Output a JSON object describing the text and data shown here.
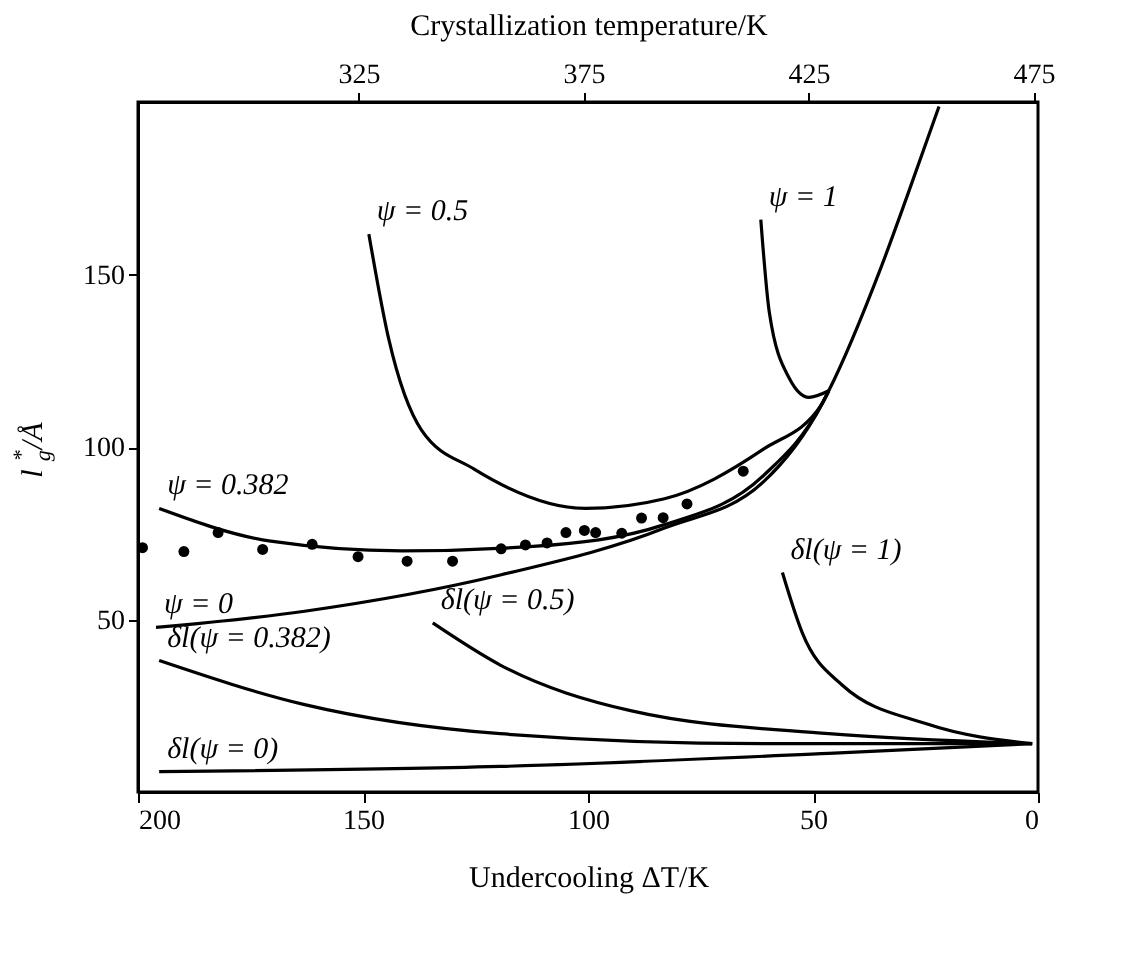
{
  "chart_data": {
    "type": "line",
    "xlabel": "Undercooling ΔT/K",
    "x2label": "Crystallization temperature/K",
    "ylabel": "l$_{g}$$^{*}$/Å",
    "xlim": [
      200,
      0
    ],
    "xticks": [
      200,
      150,
      100,
      50,
      0
    ],
    "x2lim": [
      276,
      476
    ],
    "x2ticks": [
      325,
      375,
      425,
      475
    ],
    "ylim": [
      0,
      200
    ],
    "yticks": [
      50,
      100,
      150
    ],
    "grid": false,
    "line_style": "solid",
    "marker": "none",
    "series": [
      {
        "name": "ψ = 0",
        "color": "#000000",
        "x": [
          196,
          163,
          119.5,
          83,
          61.1,
          48,
          46.5,
          34.9,
          29,
          22
        ],
        "values": [
          47.7,
          52.4,
          62.9,
          76.5,
          89.8,
          112.5,
          116.3,
          152,
          173,
          198.7
        ]
      },
      {
        "name": "ψ = 0.382",
        "color": "#000000",
        "x": [
          195.3,
          170.5,
          141.4,
          112.2,
          83,
          61.1,
          48,
          46.5
        ],
        "values": [
          82.2,
          72.7,
          69.9,
          71.2,
          77.5,
          91.6,
          112.5,
          116.3
        ]
      },
      {
        "name": "ψ = 0.5",
        "color": "#000000",
        "x": [
          148.7,
          144.3,
          137,
          125.3,
          100.5,
          83,
          61.1,
          48,
          46.5
        ],
        "values": [
          161.7,
          131.4,
          104.9,
          93.6,
          82.2,
          85,
          99.3,
          112.5,
          116.3
        ]
      },
      {
        "name": "ψ = 1",
        "color": "#000000",
        "x": [
          61.6,
          59.7,
          55.3,
          50.9,
          46.5
        ],
        "values": [
          165.9,
          139,
          120,
          114.4,
          116.3
        ]
      },
      {
        "name": "δl(ψ = 1)",
        "color": "#000000",
        "x": [
          56.8,
          52.4,
          43.6,
          24.6,
          1.3
        ],
        "values": [
          63.6,
          46.2,
          31.1,
          19.7,
          14
        ]
      },
      {
        "name": "δl(ψ = 0.5)",
        "color": "#000000",
        "x": [
          134.5,
          119.5,
          90.3,
          46.5,
          1.3
        ],
        "values": [
          49,
          36.8,
          23.5,
          16.9,
          14
        ]
      },
      {
        "name": "δl(ψ = 0.382)",
        "color": "#000000",
        "x": [
          195.3,
          163.2,
          119.5,
          61.1,
          1.3
        ],
        "values": [
          38.1,
          25.4,
          16.9,
          14,
          14
        ]
      },
      {
        "name": "δl(ψ = 0)",
        "color": "#000000",
        "x": [
          195.3,
          119.5,
          46.5,
          1.3
        ],
        "values": [
          5.9,
          7.4,
          11.2,
          14
        ]
      },
      {
        "type": "scatter",
        "marker": "circle",
        "color": "#000000",
        "x": [
          199,
          189.8,
          182.2,
          172.3,
          161.3,
          151.1,
          140.2,
          130.1,
          119.3,
          113.9,
          109.1,
          104.9,
          100.8,
          98.3,
          92.5,
          88.1,
          83.3,
          78,
          65.5
        ],
        "values": [
          70.8,
          69.7,
          75.2,
          70.3,
          71.8,
          68.2,
          66.9,
          66.9,
          70.5,
          71.6,
          72.2,
          75.2,
          75.8,
          75.2,
          75,
          79.4,
          79.5,
          83.5,
          93
        ]
      }
    ]
  }
}
